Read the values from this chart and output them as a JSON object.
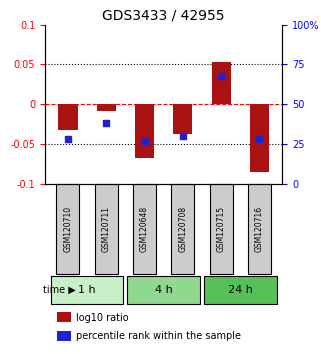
{
  "title": "GDS3433 / 42955",
  "samples": [
    "GSM120710",
    "GSM120711",
    "GSM120648",
    "GSM120708",
    "GSM120715",
    "GSM120716"
  ],
  "log10_ratio": [
    -0.033,
    -0.008,
    -0.068,
    -0.038,
    0.053,
    -0.085
  ],
  "percentile_rank": [
    28,
    38,
    27,
    30,
    68,
    28
  ],
  "time_groups": [
    {
      "label": "1 h",
      "start": 0,
      "end": 2,
      "color": "#c8f0c8"
    },
    {
      "label": "4 h",
      "start": 2,
      "end": 4,
      "color": "#90d890"
    },
    {
      "label": "24 h",
      "start": 4,
      "end": 6,
      "color": "#58c058"
    }
  ],
  "bar_color": "#aa1111",
  "blue_color": "#2222cc",
  "ylim": [
    -0.1,
    0.1
  ],
  "yticks_left": [
    -0.1,
    -0.05,
    0,
    0.05,
    0.1
  ],
  "ytick_labels_left": [
    "-0.1",
    "-0.05",
    "0",
    "0.05",
    "0.1"
  ],
  "ytick_labels_right": [
    "0",
    "25",
    "50",
    "75",
    "100%"
  ],
  "bar_width": 0.5,
  "blue_marker_size": 20
}
